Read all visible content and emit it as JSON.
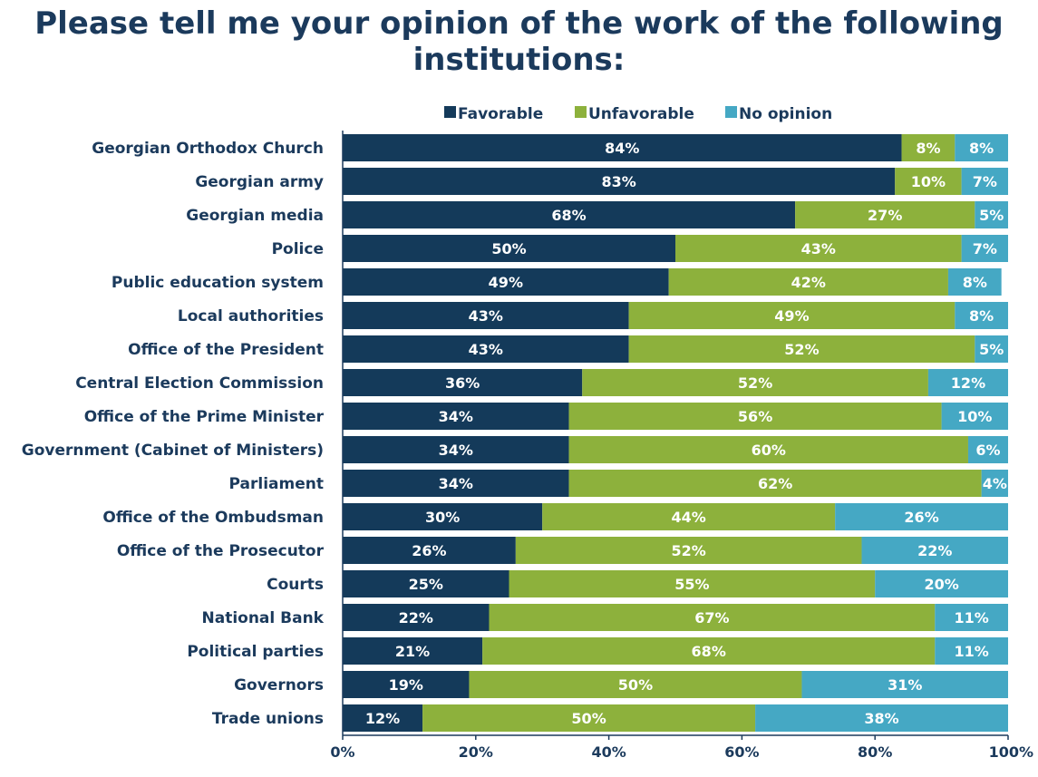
{
  "chart_data": {
    "type": "bar",
    "orientation": "horizontal",
    "stacked": true,
    "title": "Please tell me your opinion of the work of the following institutions:",
    "categories": [
      "Georgian Orthodox Church",
      "Georgian army",
      "Georgian media",
      "Police",
      "Public education system",
      "Local authorities",
      "Office of the President",
      "Central Election Commission",
      "Office of the Prime Minister",
      "Government (Cabinet of Ministers)",
      "Parliament",
      "Office of the Ombudsman",
      "Office of the Prosecutor",
      "Courts",
      "National Bank",
      "Political parties",
      "Governors",
      "Trade unions"
    ],
    "series": [
      {
        "name": "Favorable",
        "color": "#143a5a",
        "values": [
          84,
          83,
          68,
          50,
          49,
          43,
          43,
          36,
          34,
          34,
          34,
          30,
          26,
          25,
          22,
          21,
          19,
          12
        ]
      },
      {
        "name": "Unfavorable",
        "color": "#8db13c",
        "values": [
          8,
          10,
          27,
          43,
          42,
          49,
          52,
          52,
          56,
          60,
          62,
          44,
          52,
          55,
          67,
          68,
          50,
          50
        ]
      },
      {
        "name": "No opinion",
        "color": "#45a8c4",
        "values": [
          8,
          7,
          5,
          7,
          8,
          8,
          5,
          12,
          10,
          6,
          4,
          26,
          22,
          20,
          11,
          11,
          31,
          38
        ]
      }
    ],
    "xlim": [
      0,
      100
    ],
    "xticks": [
      "0%",
      "20%",
      "40%",
      "60%",
      "80%",
      "100%"
    ],
    "legend_position": "top",
    "grid": false,
    "value_suffix": "%"
  }
}
